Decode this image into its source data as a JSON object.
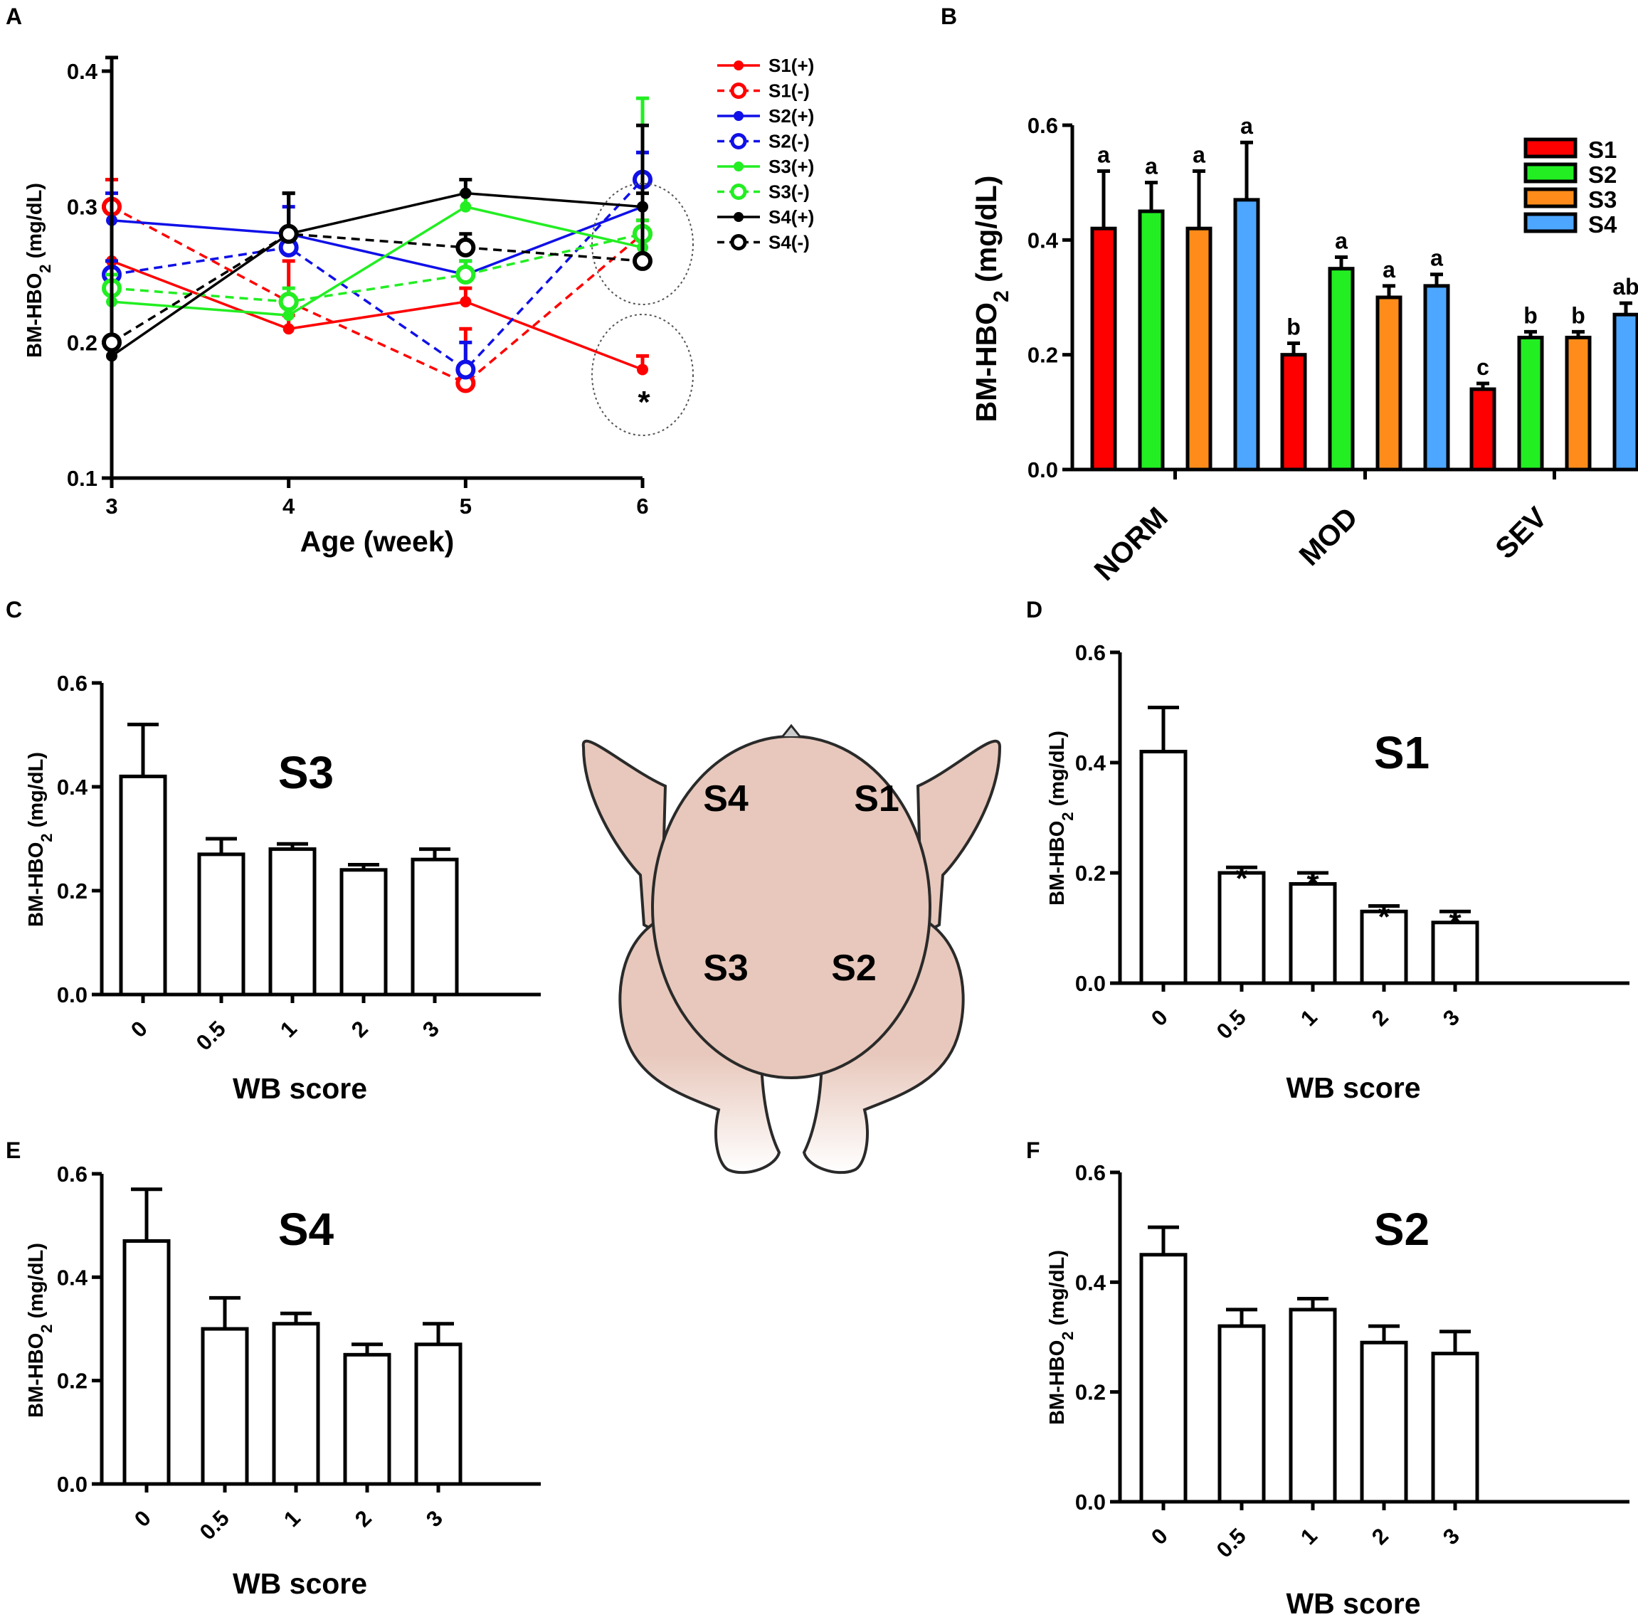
{
  "colors": {
    "s1": "#ff0000",
    "s2": "#1010e8",
    "s3": "#22ee22",
    "s4": "#000000",
    "bar_s1": "#ff0000",
    "bar_s2": "#22ee22",
    "bar_s3": "#ff8c1a",
    "bar_s4": "#4da6ff",
    "carcass": "#e8c8bc",
    "axis": "#000000"
  },
  "chart_data": [
    {
      "panel": "A",
      "type": "line",
      "xlabel": "Age (week)",
      "ylabel": "BM-HBO",
      "ylabel_sub": "2",
      "ylabel_unit": " (mg/dL)",
      "x": [
        3,
        4,
        5,
        6
      ],
      "xlim": [
        3,
        6
      ],
      "ylim": [
        0.1,
        0.4
      ],
      "yticks": [
        "0.1",
        "0.2",
        "0.3",
        "0.4"
      ],
      "xticks": [
        "3",
        "4",
        "5",
        "6"
      ],
      "annotation": "*",
      "series": [
        {
          "name": "S1(+)",
          "color_key": "s1",
          "dashed": false,
          "open": false,
          "values": [
            0.26,
            0.21,
            0.23,
            0.18
          ],
          "errors": [
            0.06,
            0.01,
            0.01,
            0.01
          ]
        },
        {
          "name": "S1(-)",
          "color_key": "s1",
          "dashed": true,
          "open": true,
          "values": [
            0.3,
            0.23,
            0.17,
            0.28
          ],
          "errors": [
            0.02,
            0.03,
            0.04,
            0.01
          ]
        },
        {
          "name": "S2(+)",
          "color_key": "s2",
          "dashed": false,
          "open": false,
          "values": [
            0.29,
            0.28,
            0.25,
            0.3
          ],
          "errors": [
            0.02,
            0.02,
            0.01,
            0.04
          ]
        },
        {
          "name": "S2(-)",
          "color_key": "s2",
          "dashed": true,
          "open": true,
          "values": [
            0.25,
            0.27,
            0.18,
            0.32
          ],
          "errors": [
            0.01,
            0.01,
            0.02,
            0.02
          ]
        },
        {
          "name": "S3(+)",
          "color_key": "s3",
          "dashed": false,
          "open": false,
          "values": [
            0.23,
            0.22,
            0.3,
            0.27
          ],
          "errors": [
            0.01,
            0.01,
            0.01,
            0.11
          ]
        },
        {
          "name": "S3(-)",
          "color_key": "s3",
          "dashed": true,
          "open": true,
          "values": [
            0.24,
            0.23,
            0.25,
            0.28
          ],
          "errors": [
            0.01,
            0.01,
            0.01,
            0.01
          ]
        },
        {
          "name": "S4(+)",
          "color_key": "s4",
          "dashed": false,
          "open": false,
          "values": [
            0.19,
            0.28,
            0.31,
            0.3
          ],
          "errors": [
            0.01,
            0.03,
            0.01,
            0.01
          ]
        },
        {
          "name": "S4(-)",
          "color_key": "s4",
          "dashed": true,
          "open": true,
          "values": [
            0.2,
            0.28,
            0.27,
            0.26
          ],
          "errors": [
            0.21,
            0.03,
            0.01,
            0.1
          ]
        }
      ]
    },
    {
      "panel": "B",
      "type": "bar",
      "ylabel": "BM-HBO",
      "ylabel_sub": "2",
      "ylabel_unit": " (mg/dL)",
      "categories": [
        "NORM",
        "MOD",
        "SEV"
      ],
      "ylim": [
        0,
        0.6
      ],
      "yticks": [
        "0.0",
        "0.2",
        "0.4",
        "0.6"
      ],
      "series": [
        {
          "name": "S1",
          "color_key": "bar_s1",
          "values": [
            0.42,
            0.2,
            0.14
          ],
          "errors": [
            0.1,
            0.02,
            0.01
          ],
          "letters": [
            "a",
            "b",
            "c"
          ]
        },
        {
          "name": "S2",
          "color_key": "bar_s2",
          "values": [
            0.45,
            0.35,
            0.23
          ],
          "errors": [
            0.05,
            0.02,
            0.01
          ],
          "letters": [
            "a",
            "a",
            "b"
          ]
        },
        {
          "name": "S3",
          "color_key": "bar_s3",
          "values": [
            0.42,
            0.3,
            0.23
          ],
          "errors": [
            0.1,
            0.02,
            0.01
          ],
          "letters": [
            "a",
            "a",
            "b"
          ]
        },
        {
          "name": "S4",
          "color_key": "bar_s4",
          "values": [
            0.47,
            0.32,
            0.27
          ],
          "errors": [
            0.1,
            0.02,
            0.02
          ],
          "letters": [
            "a",
            "a",
            "ab"
          ]
        }
      ]
    },
    {
      "panel": "C",
      "type": "bar",
      "site": "S3",
      "xlabel": "WB score",
      "ylabel": "BM-HBO",
      "ylabel_sub": "2",
      "ylabel_unit": " (mg/dL)",
      "categories": [
        "0",
        "0.5",
        "1",
        "2",
        "3"
      ],
      "values": [
        0.42,
        0.27,
        0.28,
        0.24,
        0.26
      ],
      "errors": [
        0.1,
        0.03,
        0.01,
        0.01,
        0.02
      ],
      "ylim": [
        0,
        0.6
      ],
      "yticks": [
        "0.0",
        "0.2",
        "0.4",
        "0.6"
      ]
    },
    {
      "panel": "D",
      "type": "bar",
      "site": "S1",
      "xlabel": "WB score",
      "ylabel": "BM-HBO",
      "ylabel_sub": "2",
      "ylabel_unit": " (mg/dL)",
      "categories": [
        "0",
        "0.5",
        "1",
        "2",
        "3"
      ],
      "values": [
        0.42,
        0.2,
        0.18,
        0.13,
        0.11
      ],
      "errors": [
        0.08,
        0.01,
        0.02,
        0.01,
        0.02
      ],
      "stars": [
        "",
        "*",
        "*",
        "*",
        "*"
      ],
      "ylim": [
        0,
        0.6
      ],
      "yticks": [
        "0.0",
        "0.2",
        "0.4",
        "0.6"
      ]
    },
    {
      "panel": "E",
      "type": "bar",
      "site": "S4",
      "xlabel": "WB score",
      "ylabel": "BM-HBO",
      "ylabel_sub": "2",
      "ylabel_unit": " (mg/dL)",
      "categories": [
        "0",
        "0.5",
        "1",
        "2",
        "3"
      ],
      "values": [
        0.47,
        0.3,
        0.31,
        0.25,
        0.27
      ],
      "errors": [
        0.1,
        0.06,
        0.02,
        0.02,
        0.04
      ],
      "ylim": [
        0,
        0.6
      ],
      "yticks": [
        "0.0",
        "0.2",
        "0.4",
        "0.6"
      ]
    },
    {
      "panel": "F",
      "type": "bar",
      "site": "S2",
      "xlabel": "WB score",
      "ylabel": "BM-HBO",
      "ylabel_sub": "2",
      "ylabel_unit": " (mg/dL)",
      "categories": [
        "0",
        "0.5",
        "1",
        "2",
        "3"
      ],
      "values": [
        0.45,
        0.32,
        0.35,
        0.29,
        0.27
      ],
      "errors": [
        0.05,
        0.03,
        0.02,
        0.03,
        0.04
      ],
      "ylim": [
        0,
        0.6
      ],
      "yticks": [
        "0.0",
        "0.2",
        "0.4",
        "0.6"
      ]
    }
  ],
  "diagram": {
    "labels": [
      "S4",
      "S1",
      "S3",
      "S2"
    ]
  }
}
